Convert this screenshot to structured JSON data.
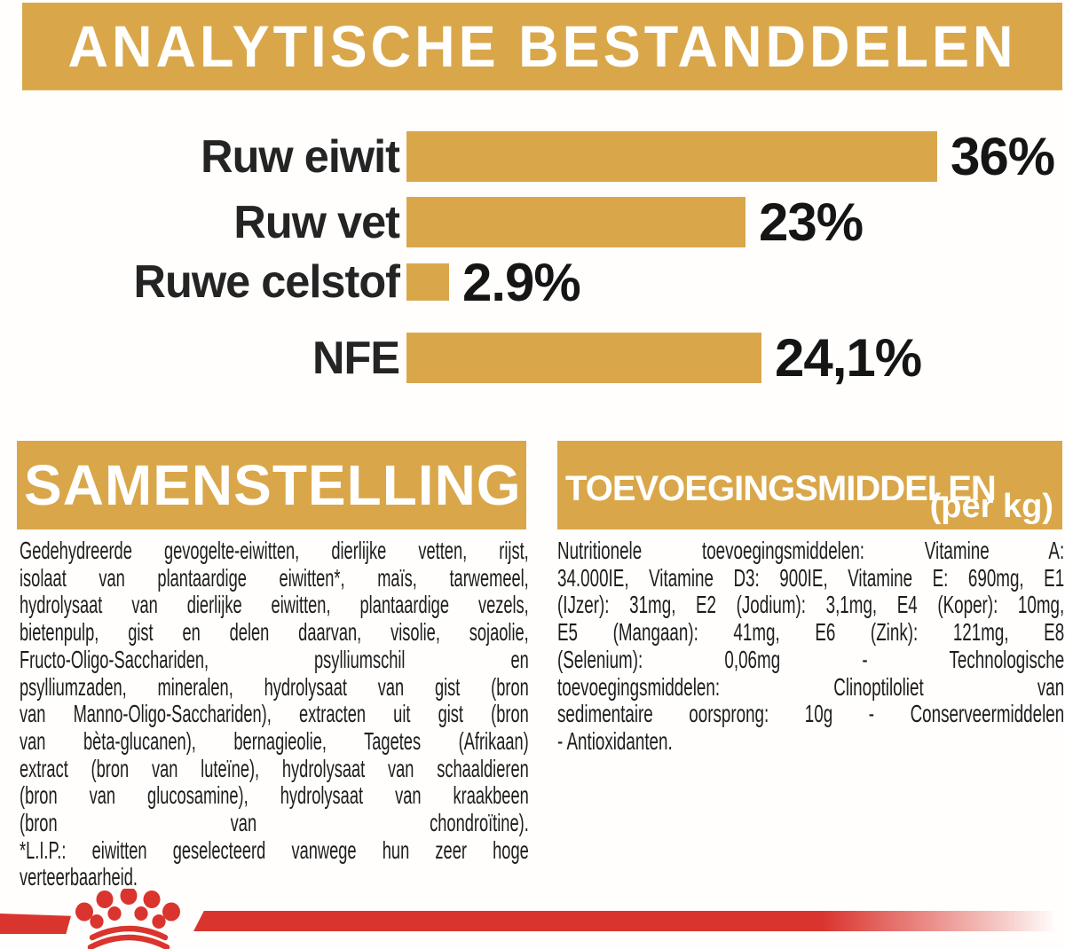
{
  "colors": {
    "gold": "#D9A74A",
    "red": "#DA342E",
    "text_dark": "#1D1D1D",
    "header_text": "#FFFFFF"
  },
  "banner": {
    "title": "ANALYTISCHE BESTANDDELEN"
  },
  "chart_data": {
    "type": "bar",
    "orientation": "horizontal",
    "title": "ANALYTISCHE BESTANDDELEN",
    "categories": [
      "Ruw eiwit",
      "Ruw vet",
      "Ruwe celstof",
      "NFE"
    ],
    "values": [
      36,
      23,
      2.9,
      24.1
    ],
    "value_labels": [
      "36%",
      "23%",
      "2.9%",
      "24,1%"
    ],
    "unit": "%",
    "xlim": [
      0,
      36
    ],
    "bar_color": "#D9A74A",
    "grid": false,
    "legend": false
  },
  "composition": {
    "title": "SAMENSTELLING",
    "lines": [
      "Gedehydreerde gevogelte-eiwitten, dierlijke vetten, rijst,",
      "isolaat van plantaardige eiwitten*, maïs, tarwemeel,",
      "hydrolysaat van dierlijke eiwitten, plantaardige vezels,",
      "bietenpulp, gist en delen daarvan, visolie, sojaolie,",
      "Fructo-Oligo-Sacchariden, psylliumschil en",
      "psylliumzaden, mineralen, hydrolysaat van gist (bron",
      "van Manno-Oligo-Sacchariden), extracten uit gist (bron",
      "van bèta-glucanen), bernagieolie, Tagetes (Afrikaan)",
      "extract (bron van luteïne), hydrolysaat van schaaldieren",
      "(bron van glucosamine), hydrolysaat van kraakbeen",
      "(bron van chondroïtine).",
      "*L.I.P.: eiwitten geselecteerd vanwege hun zeer hoge",
      "verteerbaarheid."
    ]
  },
  "additives": {
    "title": "TOEVOEGINGSMIDDELEN",
    "subtitle": "(per kg)",
    "lines": [
      "Nutritionele toevoegingsmiddelen: Vitamine A:",
      "34.000IE, Vitamine D3: 900IE, Vitamine E: 690mg, E1",
      "(IJzer): 31mg, E2 (Jodium): 3,1mg, E4 (Koper): 10mg,",
      "E5 (Mangaan): 41mg, E6 (Zink): 121mg, E8",
      "(Selenium): 0,06mg - Technologische",
      "toevoegingsmiddelen: Clinoptiloliet van",
      "sedimentaire oorsprong: 10g - Conserveermiddelen",
      "- Antioxidanten."
    ]
  },
  "footer": {
    "brand_logo": "royal-canin-crown"
  }
}
